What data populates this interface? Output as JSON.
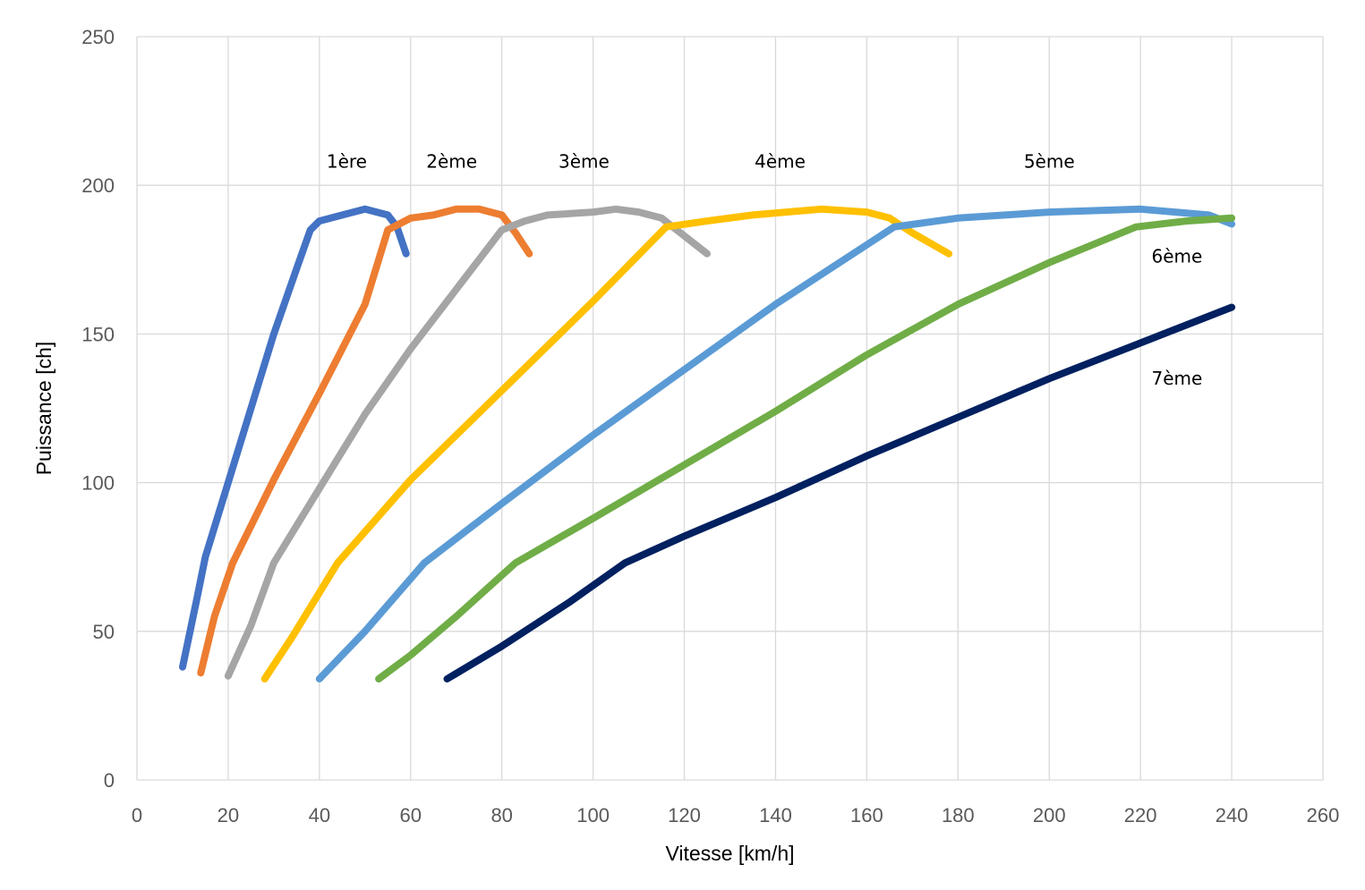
{
  "chart_data": {
    "type": "line",
    "title": "",
    "xlabel": "Vitesse [km/h]",
    "ylabel": "Puissance [ch]",
    "xlim": [
      0,
      260
    ],
    "ylim": [
      0,
      250
    ],
    "xticks": [
      0,
      20,
      40,
      60,
      80,
      100,
      120,
      140,
      160,
      180,
      200,
      220,
      240,
      260
    ],
    "yticks": [
      0,
      50,
      100,
      150,
      200,
      250
    ],
    "grid": true,
    "legend": "none",
    "series": [
      {
        "name": "1ère",
        "color": "#4472C4",
        "points": [
          [
            10,
            38
          ],
          [
            13,
            60
          ],
          [
            15,
            75
          ],
          [
            20,
            100
          ],
          [
            25,
            125
          ],
          [
            30,
            150
          ],
          [
            35,
            172
          ],
          [
            38,
            185
          ],
          [
            40,
            188
          ],
          [
            45,
            190
          ],
          [
            50,
            192
          ],
          [
            55,
            190
          ],
          [
            57,
            186
          ],
          [
            59,
            177
          ]
        ]
      },
      {
        "name": "2ème",
        "color": "#ED7D31",
        "points": [
          [
            14,
            36
          ],
          [
            17,
            55
          ],
          [
            21,
            73
          ],
          [
            30,
            101
          ],
          [
            40,
            130
          ],
          [
            50,
            160
          ],
          [
            55,
            185
          ],
          [
            60,
            189
          ],
          [
            65,
            190
          ],
          [
            70,
            192
          ],
          [
            75,
            192
          ],
          [
            80,
            190
          ],
          [
            83,
            184
          ],
          [
            86,
            177
          ]
        ]
      },
      {
        "name": "3ème",
        "color": "#A5A5A5",
        "points": [
          [
            20,
            35
          ],
          [
            25,
            52
          ],
          [
            30,
            73
          ],
          [
            40,
            98
          ],
          [
            50,
            123
          ],
          [
            60,
            145
          ],
          [
            70,
            165
          ],
          [
            80,
            185
          ],
          [
            85,
            188
          ],
          [
            90,
            190
          ],
          [
            100,
            191
          ],
          [
            105,
            192
          ],
          [
            110,
            191
          ],
          [
            115,
            189
          ],
          [
            120,
            183
          ],
          [
            125,
            177
          ]
        ]
      },
      {
        "name": "4ème",
        "color": "#FFC000",
        "points": [
          [
            28,
            34
          ],
          [
            34,
            48
          ],
          [
            44,
            73
          ],
          [
            60,
            101
          ],
          [
            80,
            131
          ],
          [
            100,
            161
          ],
          [
            116,
            186
          ],
          [
            125,
            188
          ],
          [
            135,
            190
          ],
          [
            150,
            192
          ],
          [
            160,
            191
          ],
          [
            165,
            189
          ],
          [
            170,
            184
          ],
          [
            178,
            177
          ]
        ]
      },
      {
        "name": "5ème",
        "color": "#5B9BD5",
        "points": [
          [
            40,
            34
          ],
          [
            50,
            50
          ],
          [
            63,
            73
          ],
          [
            80,
            93
          ],
          [
            100,
            116
          ],
          [
            120,
            138
          ],
          [
            140,
            160
          ],
          [
            160,
            180
          ],
          [
            166,
            186
          ],
          [
            180,
            189
          ],
          [
            200,
            191
          ],
          [
            220,
            192
          ],
          [
            235,
            190
          ],
          [
            240,
            187
          ]
        ]
      },
      {
        "name": "6ème",
        "color": "#70AD47",
        "points": [
          [
            53,
            34
          ],
          [
            60,
            42
          ],
          [
            70,
            55
          ],
          [
            83,
            73
          ],
          [
            100,
            88
          ],
          [
            120,
            106
          ],
          [
            140,
            124
          ],
          [
            160,
            143
          ],
          [
            180,
            160
          ],
          [
            200,
            174
          ],
          [
            219,
            186
          ],
          [
            230,
            188
          ],
          [
            240,
            189
          ]
        ]
      },
      {
        "name": "7ème",
        "color": "#002060",
        "points": [
          [
            68,
            34
          ],
          [
            80,
            45
          ],
          [
            95,
            60
          ],
          [
            107,
            73
          ],
          [
            120,
            82
          ],
          [
            140,
            95
          ],
          [
            160,
            109
          ],
          [
            180,
            122
          ],
          [
            200,
            135
          ],
          [
            220,
            147
          ],
          [
            240,
            159
          ]
        ]
      }
    ],
    "annotations": [
      {
        "text": "1ère",
        "x": 46,
        "y": 206
      },
      {
        "text": "2ème",
        "x": 69,
        "y": 206
      },
      {
        "text": "3ème",
        "x": 98,
        "y": 206
      },
      {
        "text": "4ème",
        "x": 141,
        "y": 206
      },
      {
        "text": "5ème",
        "x": 200,
        "y": 206
      },
      {
        "text": "6ème",
        "x": 228,
        "y": 174
      },
      {
        "text": "7ème",
        "x": 228,
        "y": 133
      }
    ]
  }
}
